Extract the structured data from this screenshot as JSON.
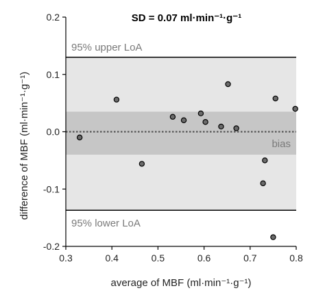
{
  "chart_data": {
    "type": "scatter",
    "title": "SD = 0.07 ml·min⁻¹·g⁻¹",
    "xlabel": "average of MBF (ml·min⁻¹·g⁻¹)",
    "ylabel": "difference of MBF (ml·min⁻¹·g⁻¹)",
    "xlim": [
      0.3,
      0.8
    ],
    "ylim": [
      -0.2,
      0.2
    ],
    "x_ticks": [
      "0.3",
      "0.4",
      "0.5",
      "0.6",
      "0.7",
      "0.8"
    ],
    "y_ticks": [
      "-0.2",
      "-0.1",
      "0.0",
      "0.1",
      "0.2"
    ],
    "bias": 0.0,
    "bias_band": [
      -0.04,
      0.035
    ],
    "loa_upper": 0.13,
    "loa_lower": -0.137,
    "labels": {
      "loa_upper": "95% upper LoA",
      "loa_lower": "95% lower LoA",
      "bias": "bias"
    },
    "points": [
      {
        "x": 0.33,
        "y": -0.01
      },
      {
        "x": 0.41,
        "y": 0.056
      },
      {
        "x": 0.465,
        "y": -0.056
      },
      {
        "x": 0.532,
        "y": 0.026
      },
      {
        "x": 0.556,
        "y": 0.02
      },
      {
        "x": 0.593,
        "y": 0.032
      },
      {
        "x": 0.603,
        "y": 0.017
      },
      {
        "x": 0.637,
        "y": 0.009
      },
      {
        "x": 0.652,
        "y": 0.083
      },
      {
        "x": 0.67,
        "y": 0.006
      },
      {
        "x": 0.728,
        "y": -0.09
      },
      {
        "x": 0.732,
        "y": -0.05
      },
      {
        "x": 0.75,
        "y": -0.184
      },
      {
        "x": 0.755,
        "y": 0.058
      },
      {
        "x": 0.798,
        "y": 0.04
      }
    ],
    "colors": {
      "outer_band": "#e6e6e6",
      "bias_band": "#c6c6c6",
      "loa_line": "#000000",
      "bias_line": "#555555",
      "point_fill": "#6b6b6b",
      "point_stroke": "#000000",
      "label_gray": "#7a7a7a"
    }
  }
}
